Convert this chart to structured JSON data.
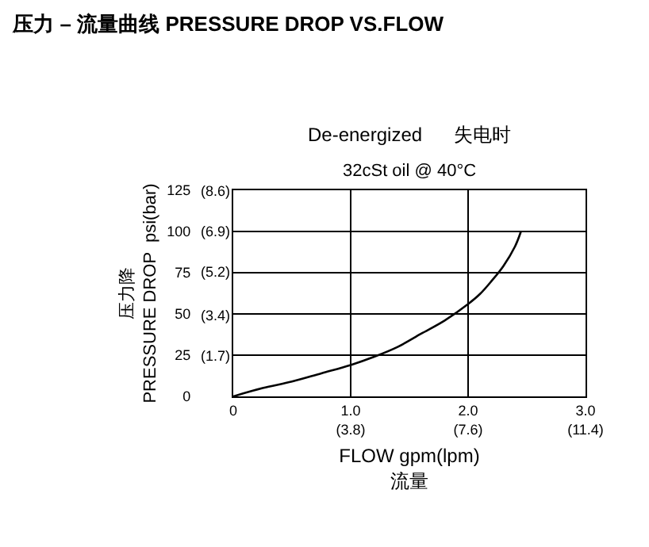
{
  "chart_data": {
    "type": "line",
    "title": "压力 – 流量曲线 PRESSURE DROP VS.FLOW",
    "subtitle": "De-energized      失电时",
    "annotations": [
      "32cSt oil @ 40°C"
    ],
    "xlabel": "FLOW gpm(lpm)\n流量",
    "ylabel": "压力降\nPRESSURE DROP  psi(bar)",
    "x": [
      0,
      0.25,
      0.5,
      0.75,
      1.0,
      1.2,
      1.4,
      1.6,
      1.8,
      2.0,
      2.1,
      2.2,
      2.3,
      2.4,
      2.45
    ],
    "series": [
      {
        "color": "#000000",
        "values": [
          0,
          5,
          9,
          14,
          19,
          24,
          30,
          38,
          46,
          56,
          62,
          70,
          79,
          91,
          100
        ]
      }
    ],
    "xlim": [
      0,
      3
    ],
    "ylim": [
      0,
      125
    ],
    "xticks": [
      0,
      {
        "value": 1,
        "label": "1.0"
      },
      {
        "value": 2,
        "label": "2.0"
      },
      {
        "value": 3,
        "label": "3.0"
      }
    ],
    "x2lim": [
      0,
      11.4
    ],
    "x2ticks": [
      {
        "value": 3.8,
        "label": "(3.8)"
      },
      {
        "value": 7.6,
        "label": "(7.6)"
      },
      {
        "value": 11.4,
        "label": "(11.4)"
      }
    ],
    "yticks": [
      0,
      25,
      50,
      75,
      100,
      125
    ],
    "y2lim": [
      0,
      8.62
    ],
    "y2ticks": [
      {
        "value": 1.7,
        "label": "(1.7)"
      },
      {
        "value": 3.4,
        "label": "(3.4)"
      },
      {
        "value": 5.2,
        "label": "(5.2)"
      },
      {
        "value": 6.9,
        "label": "(6.9)"
      },
      {
        "value": 8.6,
        "label": "(8.6)"
      }
    ],
    "grid": true,
    "marker": "none",
    "line_style": "solid"
  }
}
